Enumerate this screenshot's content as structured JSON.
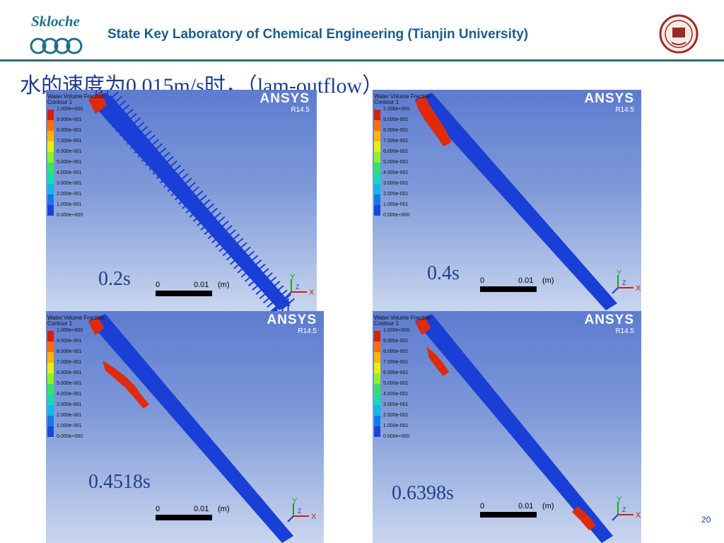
{
  "header": {
    "logo_text": "Skloche",
    "org_title": "State Key Laboratory of Chemical Engineering (Tianjin University)"
  },
  "slide_title": "水的速度为0.015m/s时，（lam-outflow）",
  "legend": {
    "title": "Water.Volume Fraction",
    "subtitle": "Contour 1",
    "labels": [
      "1.000e+000",
      "9.000e-001",
      "8.000e-001",
      "7.000e-001",
      "6.000e-001",
      "5.000e-001",
      "4.000e-001",
      "3.000e-001",
      "2.000e-001",
      "1.000e-001",
      "0.000e+000"
    ],
    "colors": [
      "#d81e05",
      "#ff6d00",
      "#ffb400",
      "#e7ef0c",
      "#8ff224",
      "#33e266",
      "#14dcae",
      "#10b7e8",
      "#1578e8",
      "#1a44d8"
    ]
  },
  "ansys": {
    "brand": "ANSYS",
    "version": "R14.5"
  },
  "scale_bar": {
    "zero": "0",
    "value": "0.01",
    "unit": "(m)"
  },
  "axes": {
    "y": "Y",
    "x": "X",
    "z": "Z"
  },
  "panels": [
    {
      "time": "0.2s"
    },
    {
      "time": "0.4s"
    },
    {
      "time": "0.4518s"
    },
    {
      "time": "0.6398s"
    }
  ],
  "page_number": "20"
}
